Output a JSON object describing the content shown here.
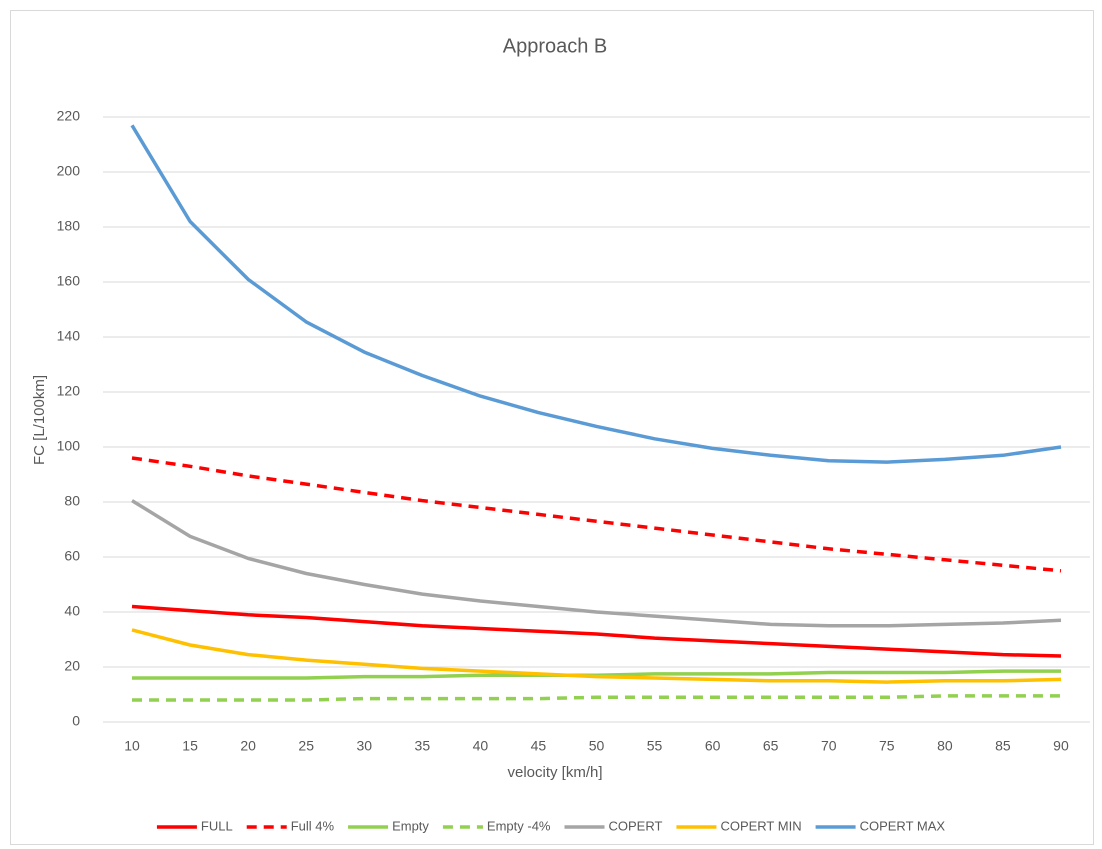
{
  "chart_data": {
    "type": "line",
    "title": "Approach B",
    "x_label": "velocity [km/h]",
    "y_label": "FC [L/100km]",
    "categories": [
      10,
      15,
      20,
      25,
      30,
      35,
      40,
      45,
      50,
      55,
      60,
      65,
      70,
      75,
      80,
      85,
      90
    ],
    "ylim": [
      0,
      220
    ],
    "yticks": [
      0,
      20,
      40,
      60,
      80,
      100,
      120,
      140,
      160,
      180,
      200,
      220
    ],
    "grid": true,
    "legend": "bottom",
    "series": [
      {
        "name": "FULL",
        "color": "#ff0000",
        "dash": false,
        "values": [
          42,
          40.5,
          39,
          38,
          36.5,
          35,
          34,
          33,
          32,
          30.5,
          29.5,
          28.5,
          27.5,
          26.5,
          25.5,
          24.5,
          24
        ]
      },
      {
        "name": "Full 4%",
        "color": "#ff0000",
        "dash": true,
        "values": [
          96,
          93,
          89.5,
          86.5,
          83.5,
          80.5,
          78,
          75.5,
          73,
          70.5,
          68,
          65.5,
          63,
          61,
          59,
          57,
          55
        ]
      },
      {
        "name": "Empty",
        "color": "#92d050",
        "dash": false,
        "values": [
          16,
          16,
          16,
          16,
          16.5,
          16.5,
          17,
          17,
          17,
          17.5,
          17.5,
          17.5,
          18,
          18,
          18,
          18.5,
          18.5
        ]
      },
      {
        "name": "Empty -4%",
        "color": "#92d050",
        "dash": true,
        "values": [
          8,
          8,
          8,
          8,
          8.5,
          8.5,
          8.5,
          8.5,
          9,
          9,
          9,
          9,
          9,
          9,
          9.5,
          9.5,
          9.5
        ]
      },
      {
        "name": "COPERT",
        "color": "#a5a5a5",
        "dash": false,
        "values": [
          80.5,
          67.5,
          59.5,
          54,
          50,
          46.5,
          44,
          42,
          40,
          38.5,
          37,
          35.5,
          35,
          35,
          35.5,
          36,
          37
        ]
      },
      {
        "name": "COPERT MIN",
        "color": "#ffc000",
        "dash": false,
        "values": [
          33.5,
          28,
          24.5,
          22.5,
          21,
          19.5,
          18.5,
          17.5,
          16.5,
          16,
          15.5,
          15,
          15,
          14.5,
          15,
          15,
          15.5
        ]
      },
      {
        "name": "COPERT MAX",
        "color": "#5b9bd5",
        "dash": false,
        "values": [
          217,
          182,
          161,
          145.5,
          134.5,
          126,
          118.5,
          112.5,
          107.5,
          103,
          99.5,
          97,
          95,
          94.5,
          95.5,
          97,
          100
        ]
      }
    ]
  }
}
